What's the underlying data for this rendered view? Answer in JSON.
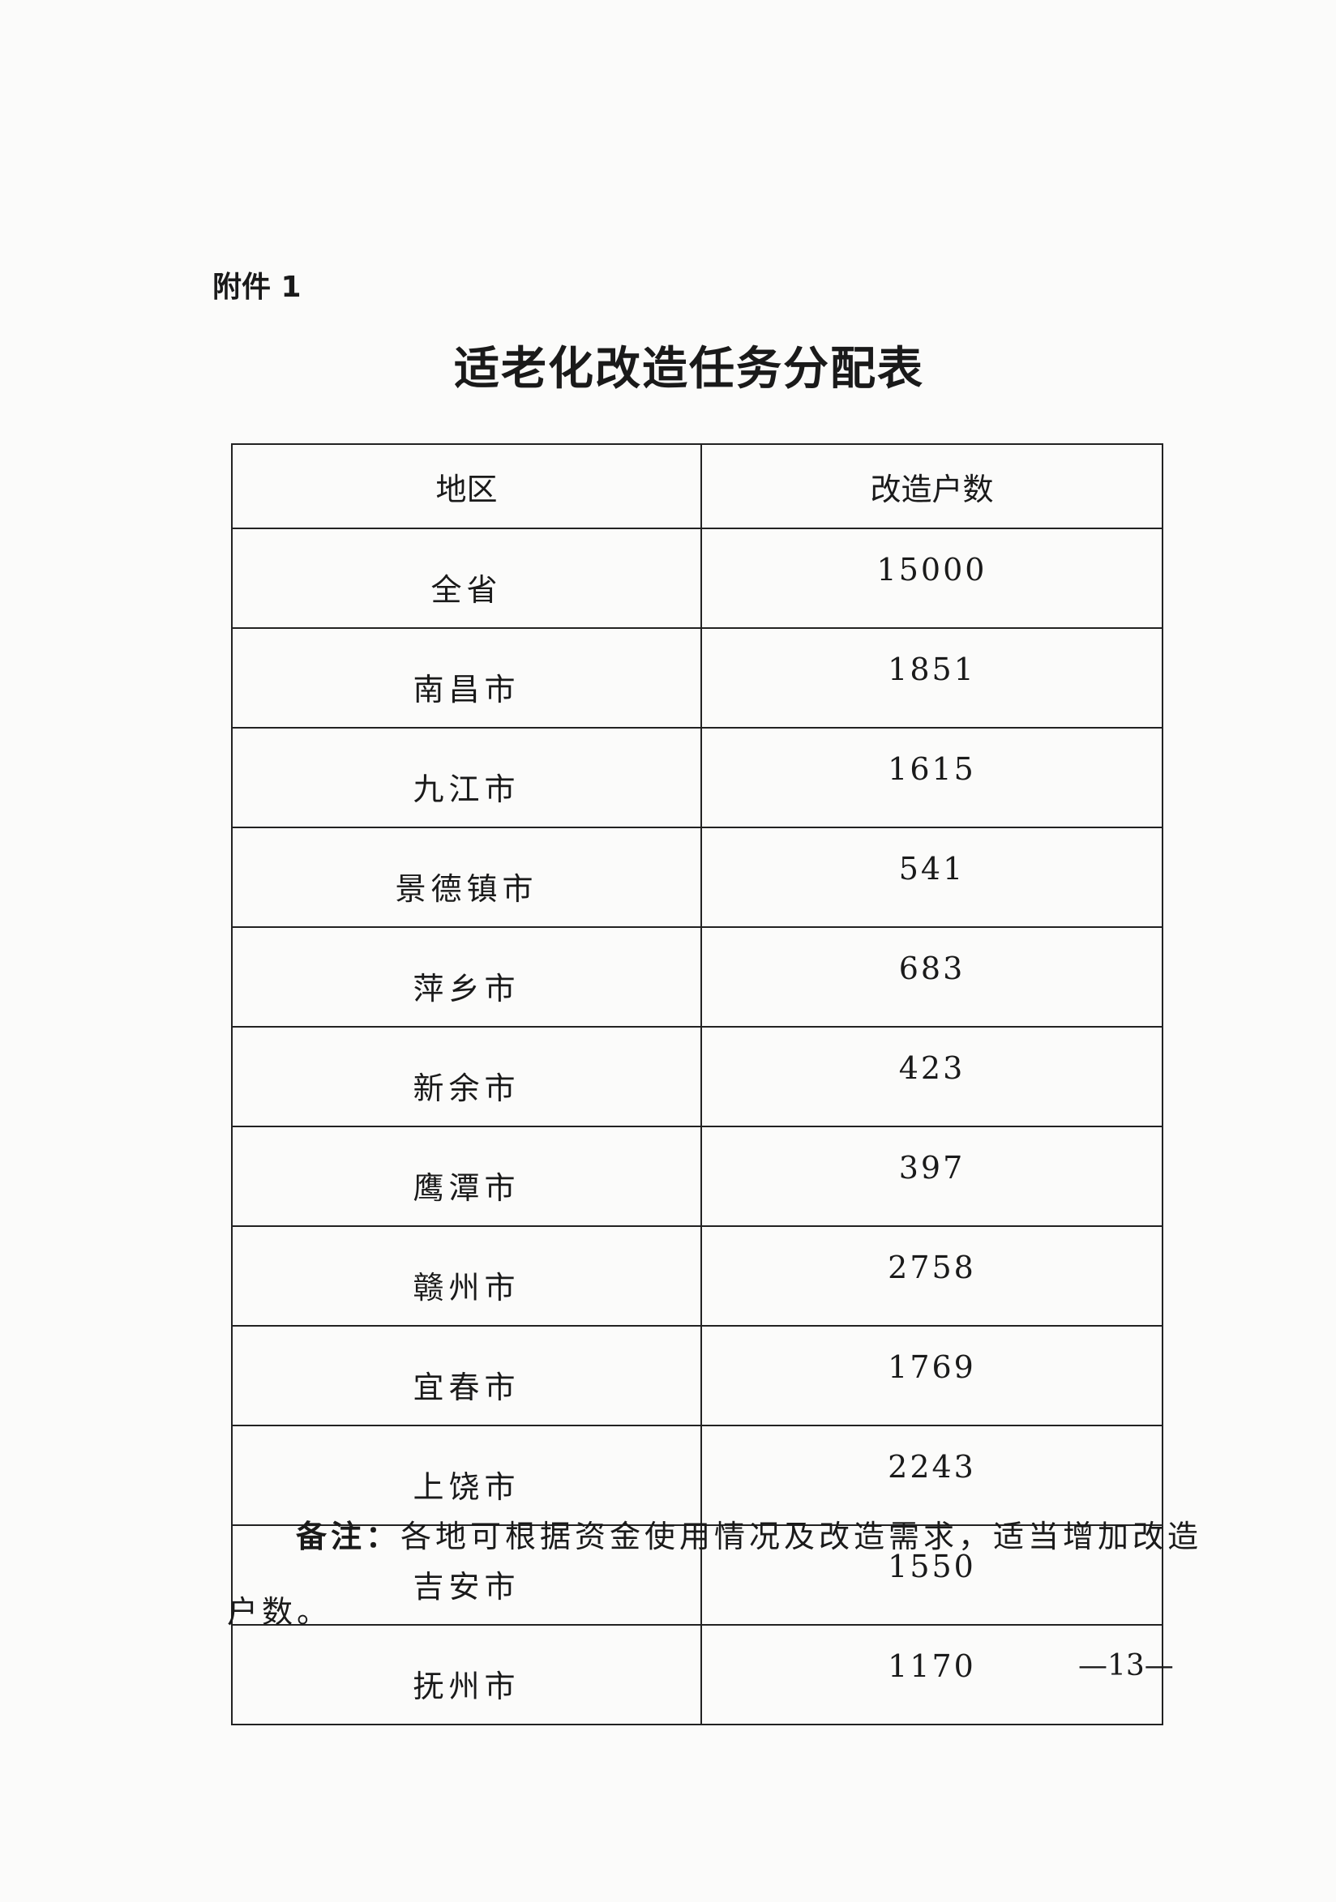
{
  "attachment_label": "附件 1",
  "title": "适老化改造任务分配表",
  "table": {
    "headers": [
      "地区",
      "改造户数"
    ],
    "rows": [
      {
        "region": "全省",
        "households": "15000"
      },
      {
        "region": "南昌市",
        "households": "1851"
      },
      {
        "region": "九江市",
        "households": "1615"
      },
      {
        "region": "景德镇市",
        "households": "541"
      },
      {
        "region": "萍乡市",
        "households": "683"
      },
      {
        "region": "新余市",
        "households": "423"
      },
      {
        "region": "鹰潭市",
        "households": "397"
      },
      {
        "region": "赣州市",
        "households": "2758"
      },
      {
        "region": "宜春市",
        "households": "1769"
      },
      {
        "region": "上饶市",
        "households": "2243"
      },
      {
        "region": "吉安市",
        "households": "1550"
      },
      {
        "region": "抚州市",
        "households": "1170"
      }
    ]
  },
  "note": {
    "label": "备注：",
    "line1": "各地可根据资金使用情况及改造需求，适当增加改造",
    "line2": "户数。"
  },
  "page_number": "—13—"
}
